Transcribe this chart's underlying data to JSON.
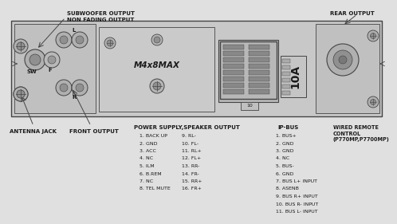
{
  "bg_color": "#e0e0e0",
  "title_top_left": "SUBWOOFER OUTPUT\nNON FADING OUTPUT",
  "title_top_right": "REAR OUTPUT",
  "label_antenna": "ANTENNA JACK",
  "label_front": "FRONT OUTPUT",
  "label_power": "POWER SUPPLY,SPEAKER OUTPUT",
  "label_ipbus": "IP-BUS",
  "label_wired": "WIRED REMOTE\nCONTROL\n(P770MP,P7700MP)",
  "text_m4x8max": "M4x8MAX",
  "text_10a": "10A",
  "power_col1": [
    "1. BACK UP",
    "2. GND",
    "3. ACC",
    "4. NC",
    "5. ILM",
    "6. B.REM",
    "7. NC",
    "8. TEL MUTE"
  ],
  "power_col2": [
    "9. RL-",
    "10. FL-",
    "11. RL+",
    "12. FL+",
    "13. RR-",
    "14. FR-",
    "15. RR+",
    "16. FR+"
  ],
  "ipbus_col": [
    "1. BUS+",
    "2. GND",
    "3. GND",
    "4. NC",
    "5. BUS-",
    "6. GND",
    "7. BUS L+ INPUT",
    "8. ASENB",
    "9. BUS R+ INPUT",
    "10. BUS R- INPUT",
    "11. BUS L- INPUT"
  ],
  "line_color": "#444444",
  "text_color": "#1a1a1a",
  "font_size_body": 5.0,
  "font_size_pin": 4.5
}
